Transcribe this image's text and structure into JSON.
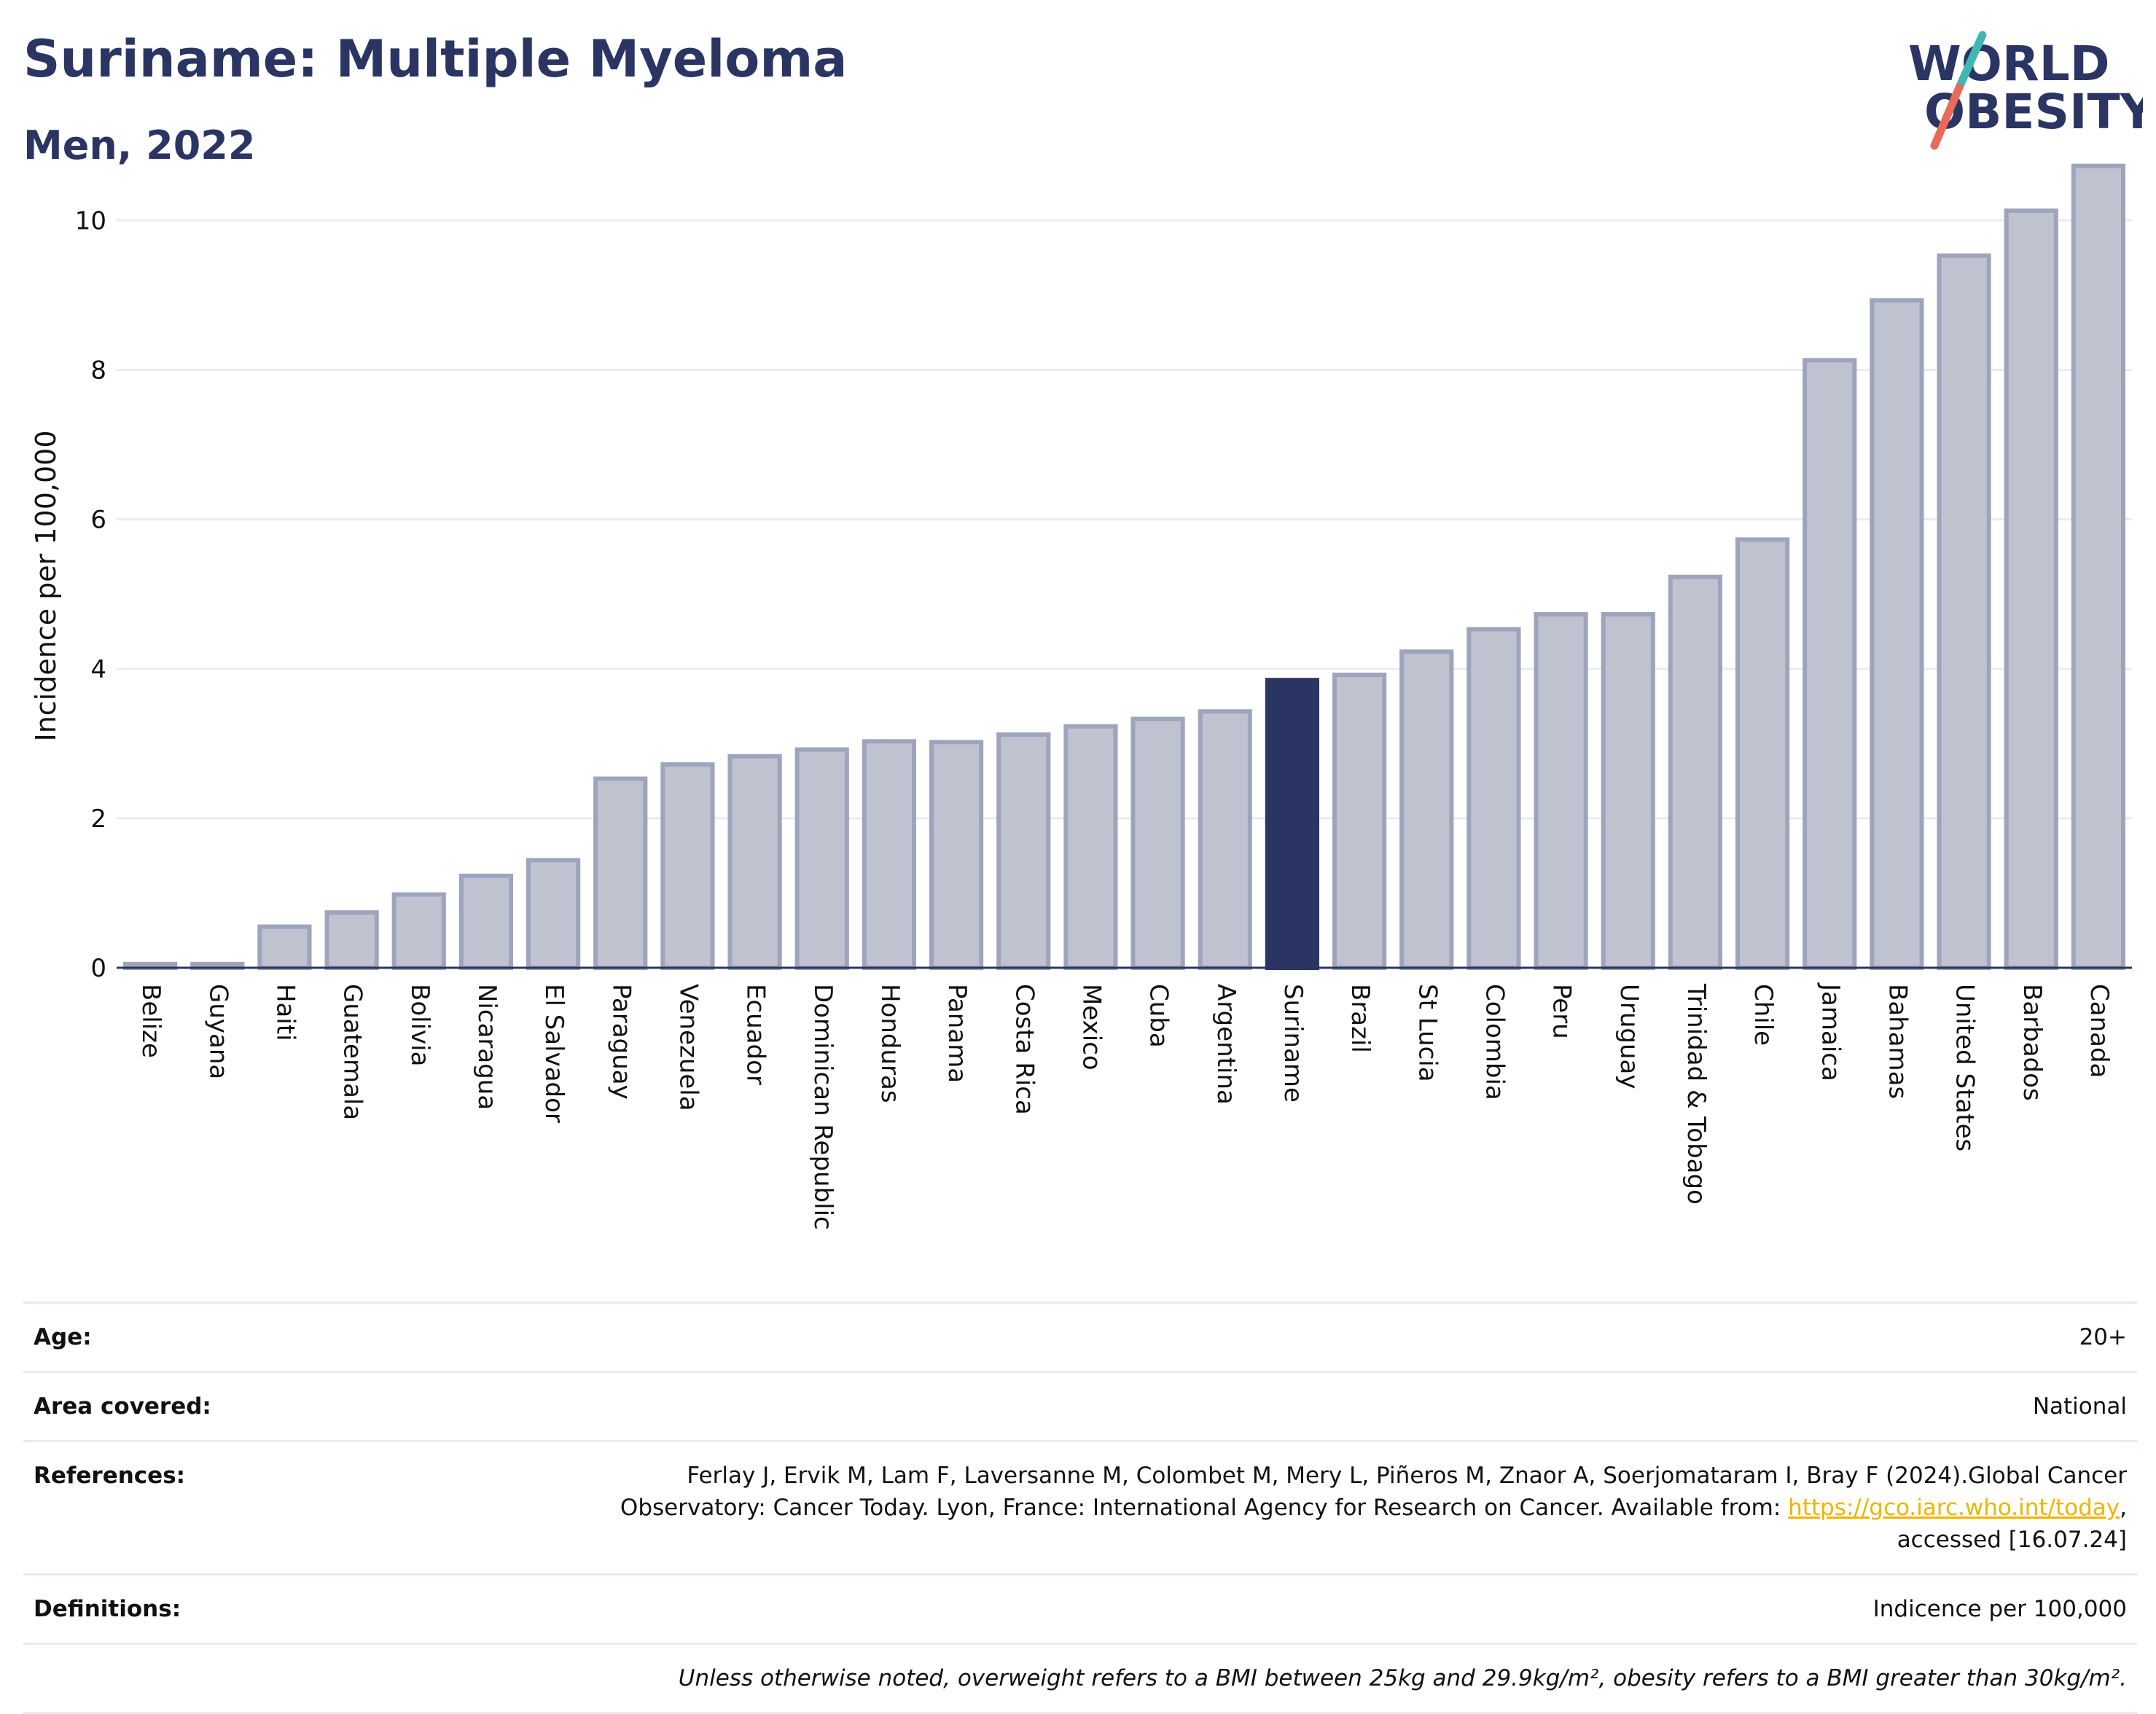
{
  "header": {
    "title": "Suriname: Multiple Myeloma",
    "subtitle": "Men, 2022",
    "logo_line1": "WORLD",
    "logo_line2": "OBESITY"
  },
  "chart_data": {
    "type": "bar",
    "title": "Suriname: Multiple Myeloma",
    "subtitle": "Men, 2022",
    "xlabel": "",
    "ylabel": "Incidence per 100,000",
    "ylim": [
      0,
      11
    ],
    "yticks": [
      0,
      2,
      4,
      6,
      8,
      10
    ],
    "grid": true,
    "highlight": "Suriname",
    "categories": [
      "Belize",
      "Guyana",
      "Haiti",
      "Guatemala",
      "Bolivia",
      "Nicaragua",
      "El Salvador",
      "Paraguay",
      "Venezuela",
      "Ecuador",
      "Dominican Republic",
      "Honduras",
      "Panama",
      "Costa Rica",
      "Mexico",
      "Cuba",
      "Argentina",
      "Suriname",
      "Brazil",
      "St Lucia",
      "Colombia",
      "Peru",
      "Uruguay",
      "Trinidad & Tobago",
      "Chile",
      "Jamaica",
      "Bahamas",
      "United States",
      "Barbados",
      "Canada"
    ],
    "values": [
      0.05,
      0.05,
      0.55,
      0.74,
      0.98,
      1.23,
      1.44,
      2.53,
      2.72,
      2.83,
      2.92,
      3.03,
      3.02,
      3.12,
      3.23,
      3.33,
      3.43,
      3.85,
      3.92,
      4.23,
      4.53,
      4.73,
      4.73,
      5.23,
      5.73,
      8.13,
      8.93,
      9.53,
      10.13,
      10.73
    ]
  },
  "colors": {
    "bar": "#bfc3d0",
    "bar_edge": "#9ea4bd",
    "highlight": "#2b3563",
    "title": "#2b3563",
    "logo_slash_top": "#3fb8b3",
    "logo_slash_bottom": "#e86a5a"
  },
  "info": {
    "age_label": "Age:",
    "age_value": "20+",
    "area_label": "Area covered:",
    "area_value": "National",
    "ref_label": "References:",
    "ref_text_1": "Ferlay J, Ervik M, Lam F, Laversanne M, Colombet M, Mery L, Piñeros M, Znaor A, Soerjomataram I, Bray F (2024).Global Cancer",
    "ref_text_2": "Observatory: Cancer Today. Lyon, France: International Agency for Research on Cancer. Available from: ",
    "ref_link": "https://gco.iarc.who.int/today",
    "ref_text_3": ",",
    "ref_text_4": "accessed [16.07.24]",
    "def_label": "Definitions:",
    "def_value": "Indicence per 100,000",
    "note": "Unless otherwise noted, overweight refers to a BMI between 25kg and 29.9kg/m², obesity refers to a BMI greater than 30kg/m²."
  }
}
